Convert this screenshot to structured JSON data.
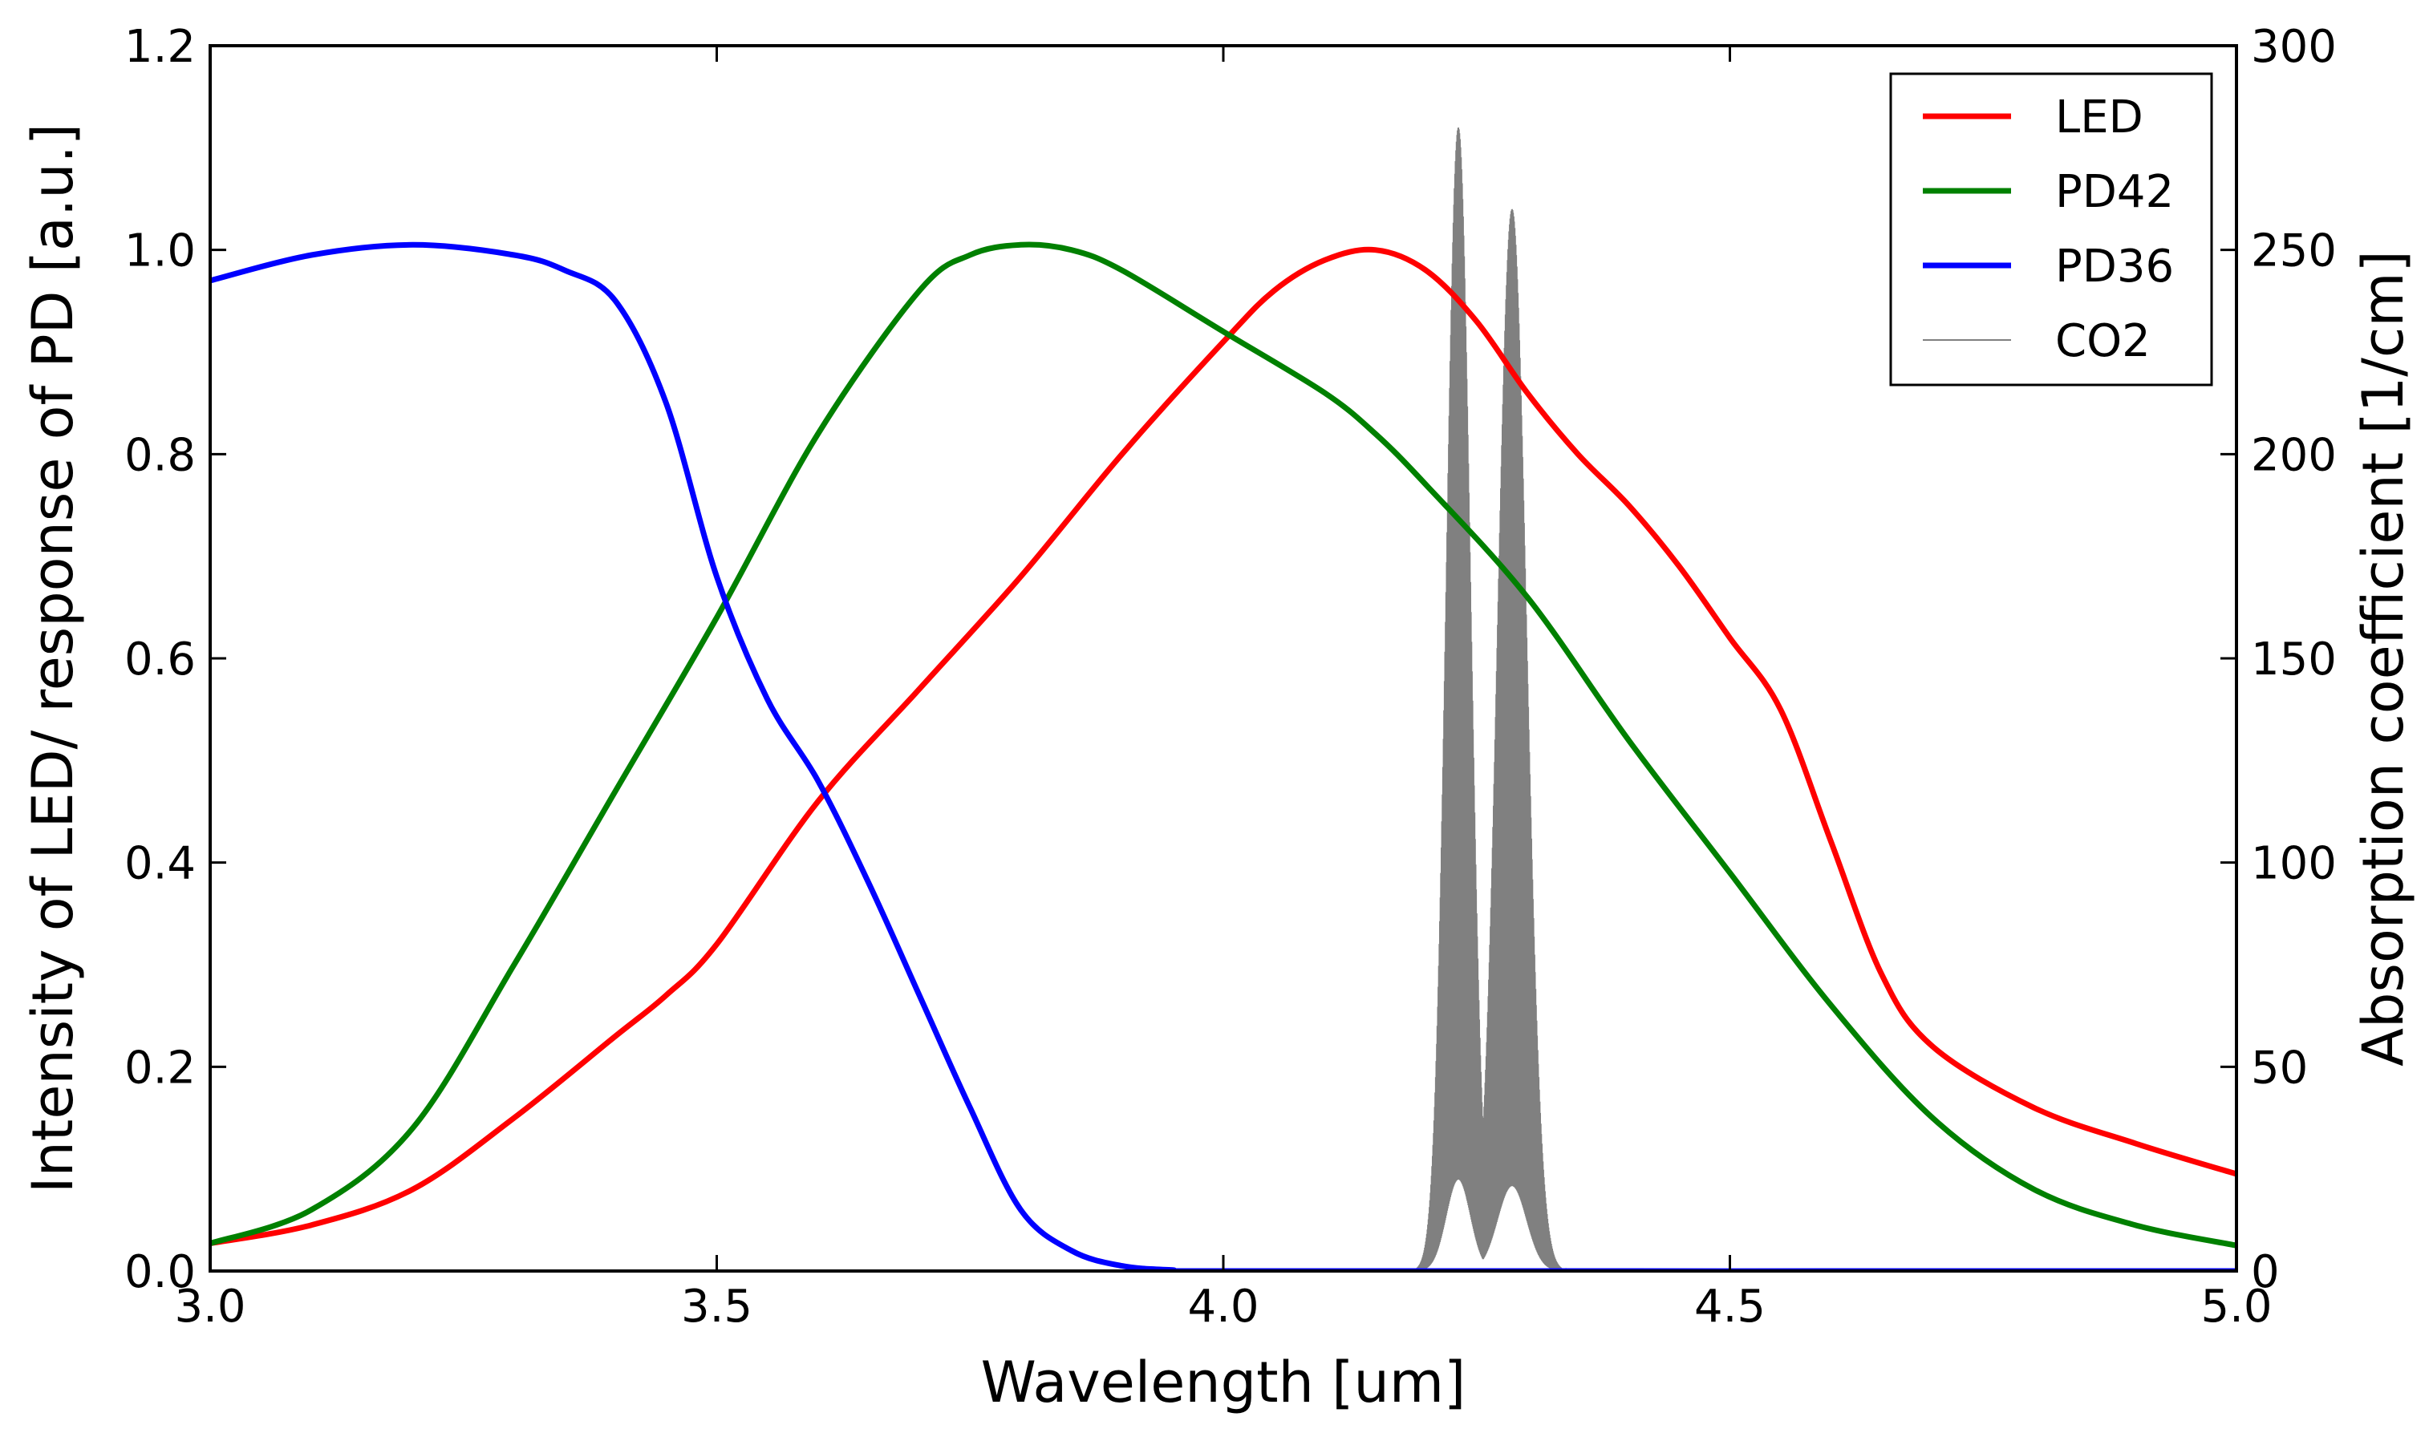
{
  "chart_data": {
    "type": "line",
    "xlabel": "Wavelength [um]",
    "ylabel": "Intensity of LED/ response of PD [a.u.]",
    "y2label": "Absorption coefficient [1/cm]",
    "xlim": [
      3.0,
      5.0
    ],
    "ylim": [
      0.0,
      1.2
    ],
    "y2lim": [
      0,
      300
    ],
    "xticks": [
      3.0,
      3.5,
      4.0,
      4.5,
      5.0
    ],
    "xtick_labels": [
      "3.0",
      "3.5",
      "4.0",
      "4.5",
      "5.0"
    ],
    "yticks": [
      0.0,
      0.2,
      0.4,
      0.6,
      0.8,
      1.0,
      1.2
    ],
    "ytick_labels": [
      "0.0",
      "0.2",
      "0.4",
      "0.6",
      "0.8",
      "1.0",
      "1.2"
    ],
    "y2ticks": [
      0,
      50,
      100,
      150,
      200,
      250,
      300
    ],
    "y2tick_labels": [
      "0",
      "50",
      "100",
      "150",
      "200",
      "250",
      "300"
    ],
    "grid": false,
    "legend_position": "top-right",
    "series": [
      {
        "name": "LED",
        "color": "#ff0000",
        "axis": "left",
        "x": [
          3.0,
          3.1,
          3.2,
          3.3,
          3.4,
          3.45,
          3.5,
          3.6,
          3.7,
          3.8,
          3.9,
          4.0,
          4.05,
          4.1,
          4.15,
          4.2,
          4.25,
          4.3,
          4.35,
          4.4,
          4.45,
          4.5,
          4.55,
          4.6,
          4.65,
          4.7,
          4.8,
          4.9,
          5.0
        ],
        "y": [
          0.027,
          0.045,
          0.08,
          0.15,
          0.23,
          0.27,
          0.32,
          0.46,
          0.57,
          0.68,
          0.8,
          0.91,
          0.96,
          0.99,
          1.0,
          0.98,
          0.93,
          0.86,
          0.8,
          0.75,
          0.69,
          0.62,
          0.55,
          0.42,
          0.29,
          0.22,
          0.16,
          0.125,
          0.095
        ]
      },
      {
        "name": "PD42",
        "color": "#008000",
        "axis": "left",
        "x": [
          3.0,
          3.1,
          3.2,
          3.3,
          3.4,
          3.5,
          3.6,
          3.7,
          3.75,
          3.8,
          3.85,
          3.9,
          4.0,
          4.1,
          4.15,
          4.2,
          4.3,
          4.4,
          4.5,
          4.6,
          4.7,
          4.8,
          4.9,
          5.0
        ],
        "y": [
          0.027,
          0.06,
          0.14,
          0.3,
          0.47,
          0.64,
          0.82,
          0.96,
          0.995,
          1.005,
          1.0,
          0.98,
          0.92,
          0.86,
          0.82,
          0.77,
          0.66,
          0.52,
          0.39,
          0.26,
          0.15,
          0.08,
          0.045,
          0.025
        ]
      },
      {
        "name": "PD36",
        "color": "#0000ff",
        "axis": "left",
        "x": [
          3.0,
          3.1,
          3.2,
          3.3,
          3.35,
          3.4,
          3.45,
          3.5,
          3.55,
          3.6,
          3.65,
          3.7,
          3.75,
          3.8,
          3.85,
          3.9,
          3.95,
          4.0,
          5.0
        ],
        "y": [
          0.97,
          0.995,
          1.005,
          0.995,
          0.98,
          0.95,
          0.85,
          0.68,
          0.56,
          0.48,
          0.38,
          0.27,
          0.16,
          0.06,
          0.02,
          0.005,
          0.001,
          0.0,
          0.0
        ]
      },
      {
        "name": "CO2",
        "color": "#808080",
        "axis": "right",
        "peaks": [
          {
            "center": 4.232,
            "max": 280,
            "width": 0.025
          },
          {
            "center": 4.285,
            "max": 260,
            "width": 0.03
          }
        ],
        "x_range": [
          4.19,
          4.37
        ]
      }
    ]
  }
}
